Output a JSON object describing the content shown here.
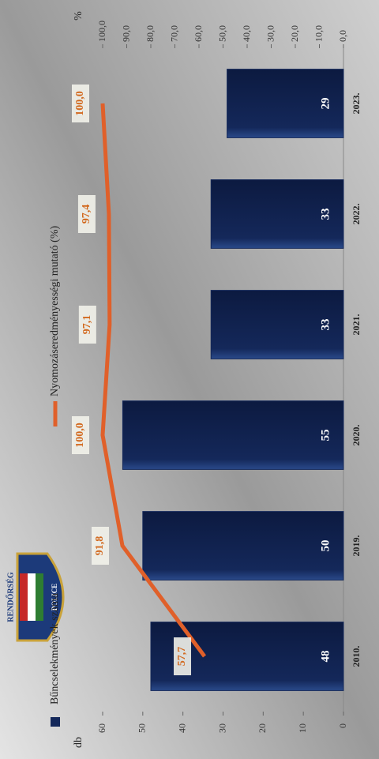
{
  "chart_data": {
    "type": "bar-line",
    "categories": [
      "2010.",
      "2019.",
      "2020.",
      "2021.",
      "2022.",
      "2023."
    ],
    "y_label": "db",
    "y2_label": "%",
    "logo": {
      "top": "RENDŐRSÉG",
      "bottom": "POLICE"
    },
    "series": [
      {
        "name": "Bűncselekmények száma",
        "type": "bar",
        "color": "#14285a",
        "values": [
          48,
          50,
          55,
          33,
          33,
          29
        ]
      },
      {
        "name": "Nyomozáseredményességi mutató (%)",
        "type": "line",
        "axis": "y2",
        "color": "#e0602a",
        "values": [
          57.7,
          91.8,
          100.0,
          97.1,
          97.4,
          100.0
        ],
        "value_labels": [
          "57,7",
          "91,8",
          "100,0",
          "97,1",
          "97,4",
          "100,0"
        ]
      }
    ],
    "ylim": [
      0,
      60
    ],
    "yticks": [
      0,
      10,
      20,
      30,
      40,
      50,
      60
    ],
    "y2lim": [
      0,
      100
    ],
    "y2ticks": [
      {
        "value": 0,
        "label": "0,0"
      },
      {
        "value": 10,
        "label": "10,0"
      },
      {
        "value": 20,
        "label": "20,0"
      },
      {
        "value": 30,
        "label": "30,0"
      },
      {
        "value": 40,
        "label": "40,0"
      },
      {
        "value": 50,
        "label": "50,0"
      },
      {
        "value": 60,
        "label": "60,0"
      },
      {
        "value": 70,
        "label": "70,0"
      },
      {
        "value": 80,
        "label": "80,0"
      },
      {
        "value": 90,
        "label": "90,0"
      },
      {
        "value": 100,
        "label": "100,0"
      }
    ]
  }
}
